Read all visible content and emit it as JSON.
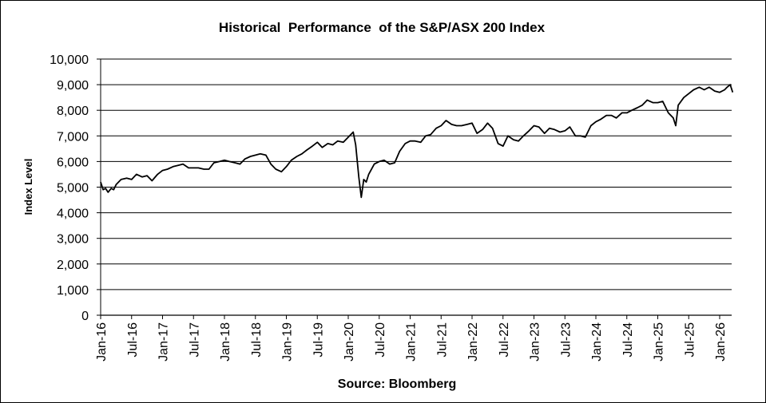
{
  "chart_data": {
    "type": "line",
    "title": "Historical  Performance  of the S&P/ASX 200 Index",
    "xlabel": "Source: Bloomberg",
    "ylabel": "Index Level",
    "ylim": [
      0,
      10000
    ],
    "yticks": [
      0,
      1000,
      2000,
      3000,
      4000,
      5000,
      6000,
      7000,
      8000,
      9000,
      10000
    ],
    "ytick_labels": [
      "0",
      "1,000",
      "2,000",
      "3,000",
      "4,000",
      "5,000",
      "6,000",
      "7,000",
      "8,000",
      "9,000",
      "10,000"
    ],
    "xlim": [
      2016.0,
      2026.25
    ],
    "xticks": [
      2016.0,
      2016.5,
      2017.0,
      2017.5,
      2018.0,
      2018.5,
      2019.0,
      2019.5,
      2020.0,
      2020.5,
      2021.0,
      2021.5,
      2022.0,
      2022.5,
      2023.0,
      2023.5,
      2024.0,
      2024.5,
      2025.0,
      2025.5,
      2026.0
    ],
    "xtick_labels": [
      "Jan-16",
      "Jul-16",
      "Jan-17",
      "Jul-17",
      "Jan-18",
      "Jul-18",
      "Jan-19",
      "Jul-19",
      "Jan-20",
      "Jul-20",
      "Jan-21",
      "Jul-21",
      "Jan-22",
      "Jul-22",
      "Jan-23",
      "Jul-23",
      "Jan-24",
      "Jul-24",
      "Jan-25",
      "Jul-25",
      "Jan-26"
    ],
    "grid": true,
    "legend": "none",
    "series": [
      {
        "name": "S&P/ASX 200 Index",
        "color": "#000000",
        "x": [
          2016.0,
          2016.04,
          2016.08,
          2016.12,
          2016.17,
          2016.21,
          2016.25,
          2016.33,
          2016.42,
          2016.5,
          2016.58,
          2016.67,
          2016.75,
          2016.83,
          2016.92,
          2017.0,
          2017.08,
          2017.17,
          2017.25,
          2017.33,
          2017.42,
          2017.5,
          2017.58,
          2017.67,
          2017.75,
          2017.83,
          2017.92,
          2018.0,
          2018.08,
          2018.17,
          2018.25,
          2018.33,
          2018.42,
          2018.5,
          2018.58,
          2018.67,
          2018.75,
          2018.83,
          2018.92,
          2019.0,
          2019.08,
          2019.17,
          2019.25,
          2019.33,
          2019.42,
          2019.5,
          2019.58,
          2019.67,
          2019.75,
          2019.83,
          2019.92,
          2020.0,
          2020.08,
          2020.12,
          2020.17,
          2020.21,
          2020.25,
          2020.29,
          2020.33,
          2020.42,
          2020.5,
          2020.58,
          2020.67,
          2020.75,
          2020.83,
          2020.92,
          2021.0,
          2021.08,
          2021.17,
          2021.25,
          2021.33,
          2021.42,
          2021.5,
          2021.58,
          2021.67,
          2021.75,
          2021.83,
          2021.92,
          2022.0,
          2022.08,
          2022.17,
          2022.25,
          2022.33,
          2022.42,
          2022.5,
          2022.58,
          2022.67,
          2022.75,
          2022.83,
          2022.92,
          2023.0,
          2023.08,
          2023.17,
          2023.25,
          2023.33,
          2023.42,
          2023.5,
          2023.58,
          2023.67,
          2023.75,
          2023.83,
          2023.92,
          2024.0,
          2024.08,
          2024.17,
          2024.25,
          2024.33,
          2024.42,
          2024.5,
          2024.58,
          2024.67,
          2024.75,
          2024.83,
          2024.92,
          2025.0,
          2025.08,
          2025.17,
          2025.25,
          2025.29,
          2025.33,
          2025.42,
          2025.5,
          2025.58,
          2025.67,
          2025.75,
          2025.83,
          2025.92,
          2026.0,
          2026.08,
          2026.12,
          2026.17,
          2026.21
        ],
        "values": [
          5200,
          4900,
          4950,
          4800,
          4950,
          4900,
          5100,
          5300,
          5350,
          5300,
          5500,
          5400,
          5450,
          5250,
          5500,
          5650,
          5700,
          5800,
          5850,
          5900,
          5750,
          5750,
          5750,
          5700,
          5700,
          5950,
          6000,
          6050,
          6000,
          5950,
          5900,
          6100,
          6200,
          6250,
          6300,
          6250,
          5900,
          5700,
          5600,
          5800,
          6050,
          6200,
          6300,
          6450,
          6600,
          6750,
          6550,
          6700,
          6650,
          6800,
          6750,
          6950,
          7150,
          6650,
          5400,
          4600,
          5300,
          5200,
          5500,
          5900,
          6000,
          6050,
          5900,
          5950,
          6400,
          6700,
          6800,
          6800,
          6750,
          7000,
          7050,
          7300,
          7400,
          7600,
          7450,
          7400,
          7400,
          7450,
          7500,
          7100,
          7250,
          7500,
          7300,
          6700,
          6600,
          7000,
          6850,
          6800,
          7000,
          7200,
          7400,
          7350,
          7100,
          7300,
          7250,
          7150,
          7200,
          7350,
          7000,
          7000,
          6950,
          7400,
          7550,
          7650,
          7800,
          7800,
          7700,
          7900,
          7900,
          8000,
          8100,
          8200,
          8400,
          8300,
          8300,
          8350,
          7900,
          7700,
          7400,
          8200,
          8500,
          8650,
          8800,
          8900,
          8800,
          8900,
          8750,
          8700,
          8800,
          8900,
          9000,
          8700
        ]
      }
    ],
    "annotation": "Source: Bloomberg"
  }
}
